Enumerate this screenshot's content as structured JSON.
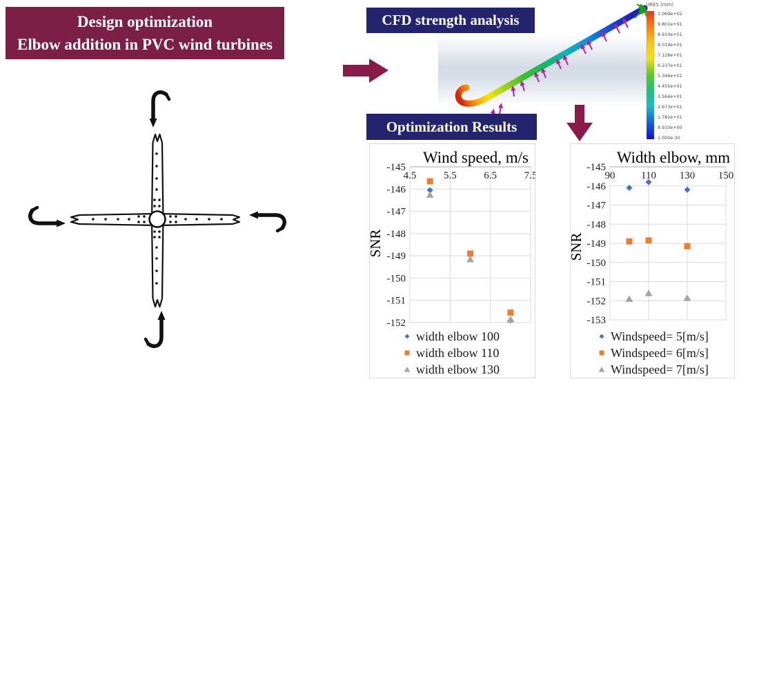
{
  "banners": {
    "main": {
      "line1": "Design optimization",
      "line2": "Elbow addition in PVC wind turbines"
    },
    "cfd": {
      "label": "CFD strength analysis"
    },
    "results": {
      "label": "Optimization Results"
    }
  },
  "cfd_scale": {
    "title": "URES (mm)",
    "labels": [
      "1.069e+02",
      "9.801e+01",
      "8.910e+01",
      "8.019e+01",
      "7.128e+01",
      "6.237e+01",
      "5.346e+01",
      "4.455e+01",
      "3.564e+01",
      "2.673e+01",
      "1.782e+01",
      "8.910e+00",
      "1.000e-30"
    ]
  },
  "chart_data": [
    {
      "type": "scatter",
      "title": "Wind speed, m/s",
      "ylabel": "SNR",
      "xlim": [
        4.5,
        7.5
      ],
      "ylim": [
        -152,
        -145
      ],
      "x_ticks": [
        4.5,
        5.5,
        6.5,
        7.5
      ],
      "y_ticks": [
        -145,
        -146,
        -147,
        -148,
        -149,
        -150,
        -151,
        -152
      ],
      "grid": true,
      "legend_position": "bottom",
      "series": [
        {
          "name": "width elbow 100",
          "marker": "diamond",
          "color": "#4472C4",
          "points": [
            [
              5,
              -146.05
            ],
            [
              6,
              -148.95
            ],
            [
              7,
              -151.9
            ]
          ]
        },
        {
          "name": "width elbow 110",
          "marker": "square",
          "color": "#ED7D31",
          "points": [
            [
              5,
              -145.65
            ],
            [
              6,
              -148.9
            ],
            [
              7,
              -151.55
            ]
          ]
        },
        {
          "name": "width elbow 130",
          "marker": "triangle",
          "color": "#A5A5A5",
          "points": [
            [
              5,
              -146.25
            ],
            [
              6,
              -149.15
            ],
            [
              7,
              -151.85
            ]
          ]
        }
      ]
    },
    {
      "type": "scatter",
      "title": "Width elbow, mm",
      "ylabel": "SNR",
      "xlim": [
        90,
        150
      ],
      "ylim": [
        -153,
        -145
      ],
      "x_ticks": [
        90,
        110,
        130,
        150
      ],
      "y_ticks": [
        -145,
        -146,
        -147,
        -148,
        -149,
        -150,
        -151,
        -152,
        -153
      ],
      "grid": true,
      "legend_position": "bottom",
      "series": [
        {
          "name": "Windspeed= 5[m/s]",
          "marker": "diamond",
          "color": "#4472C4",
          "points": [
            [
              100,
              -146.1
            ],
            [
              110,
              -145.8
            ],
            [
              130,
              -146.2
            ]
          ]
        },
        {
          "name": "Windspeed= 6[m/s]",
          "marker": "square",
          "color": "#ED7D31",
          "points": [
            [
              100,
              -148.9
            ],
            [
              110,
              -148.85
            ],
            [
              130,
              -149.15
            ]
          ]
        },
        {
          "name": "Windspeed= 7[m/s]",
          "marker": "triangle",
          "color": "#A5A5A5",
          "points": [
            [
              100,
              -151.9
            ],
            [
              110,
              -151.6
            ],
            [
              130,
              -151.85
            ]
          ]
        }
      ]
    }
  ],
  "colors": {
    "maroon_banner": "#7B1F47",
    "navy_banner": "#24246E",
    "flow_arrow": "#8A1A4A",
    "marker_blue": "#4472C4",
    "marker_orange": "#ED7D31",
    "marker_gray": "#A5A5A5",
    "grid": "#D9D9D9",
    "chart_text": "#1F1F1F",
    "load_arrow_magenta": "#B81FA0",
    "fixture_arrow_green": "#1E9E1E"
  }
}
